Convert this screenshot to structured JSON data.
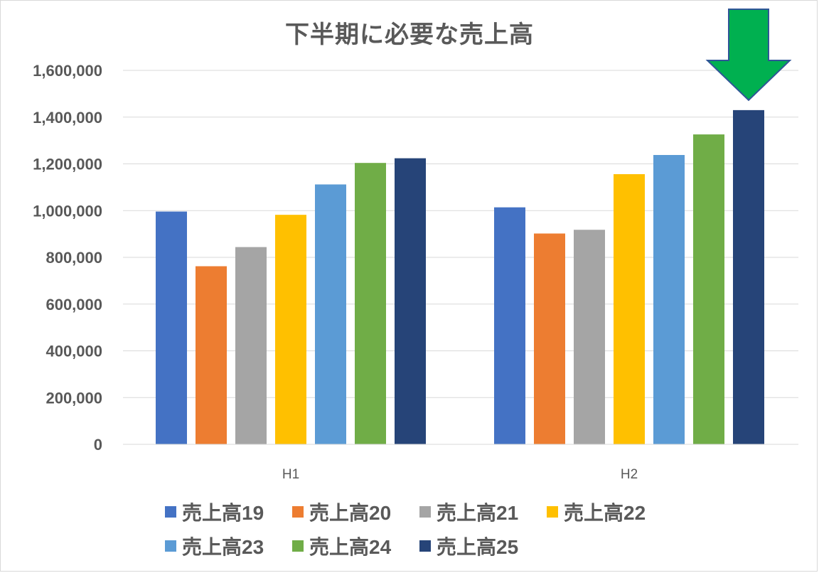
{
  "chart_data": {
    "type": "bar",
    "title": "下半期に必要な売上高",
    "xlabel": "",
    "ylabel": "",
    "categories": [
      "H1",
      "H2"
    ],
    "ylim": [
      0,
      1600000
    ],
    "yticks": [
      0,
      200000,
      400000,
      600000,
      800000,
      1000000,
      1200000,
      1400000,
      1600000
    ],
    "ytick_labels": [
      "0",
      "200,000",
      "400,000",
      "600,000",
      "800,000",
      "1,000,000",
      "1,200,000",
      "1,400,000",
      "1,600,000"
    ],
    "grid": true,
    "legend_position": "bottom",
    "series": [
      {
        "name": "売上高19",
        "color": "#4472C4",
        "values": [
          996000,
          1014000
        ]
      },
      {
        "name": "売上高20",
        "color": "#ED7D31",
        "values": [
          762000,
          902000
        ]
      },
      {
        "name": "売上高21",
        "color": "#A5A5A5",
        "values": [
          844000,
          918000
        ]
      },
      {
        "name": "売上高22",
        "color": "#FFC000",
        "values": [
          982000,
          1156000
        ]
      },
      {
        "name": "売上高23",
        "color": "#5B9BD5",
        "values": [
          1112000,
          1238000
        ]
      },
      {
        "name": "売上高24",
        "color": "#70AD47",
        "values": [
          1204000,
          1326000
        ]
      },
      {
        "name": "売上高25",
        "color": "#264478",
        "values": [
          1224000,
          1430000
        ]
      }
    ],
    "annotation": {
      "shape": "down-arrow",
      "color": "#00B050",
      "outline": "#2F5597",
      "target": "H2 売上高25"
    }
  }
}
